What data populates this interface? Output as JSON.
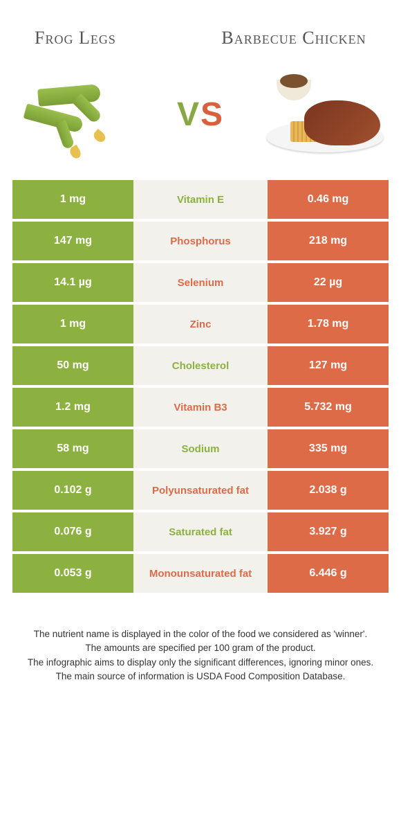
{
  "header": {
    "left_title": "Frog Legs",
    "right_title": "Barbecue Chicken",
    "vs_v": "V",
    "vs_s": "S"
  },
  "colors": {
    "green": "#8cb141",
    "orange": "#dd6b48",
    "mid_bg": "#f3f1ec"
  },
  "table": {
    "rows": [
      {
        "left": "1 mg",
        "label": "Vitamin E",
        "winner": "green",
        "right": "0.46 mg"
      },
      {
        "left": "147 mg",
        "label": "Phosphorus",
        "winner": "orange",
        "right": "218 mg"
      },
      {
        "left": "14.1 µg",
        "label": "Selenium",
        "winner": "orange",
        "right": "22 µg"
      },
      {
        "left": "1 mg",
        "label": "Zinc",
        "winner": "orange",
        "right": "1.78 mg"
      },
      {
        "left": "50 mg",
        "label": "Cholesterol",
        "winner": "green",
        "right": "127 mg"
      },
      {
        "left": "1.2 mg",
        "label": "Vitamin B3",
        "winner": "orange",
        "right": "5.732 mg"
      },
      {
        "left": "58 mg",
        "label": "Sodium",
        "winner": "green",
        "right": "335 mg"
      },
      {
        "left": "0.102 g",
        "label": "Polyunsaturated fat",
        "winner": "orange",
        "right": "2.038 g"
      },
      {
        "left": "0.076 g",
        "label": "Saturated fat",
        "winner": "green",
        "right": "3.927 g"
      },
      {
        "left": "0.053 g",
        "label": "Monounsaturated fat",
        "winner": "orange",
        "right": "6.446 g"
      }
    ]
  },
  "footer": {
    "line1": "The nutrient name is displayed in the color of the food we considered as 'winner'.",
    "line2": "The amounts are specified per 100 gram of the product.",
    "line3": "The infographic aims to display only the significant differences, ignoring minor ones.",
    "line4": "The main source of information is USDA Food Composition Database."
  }
}
